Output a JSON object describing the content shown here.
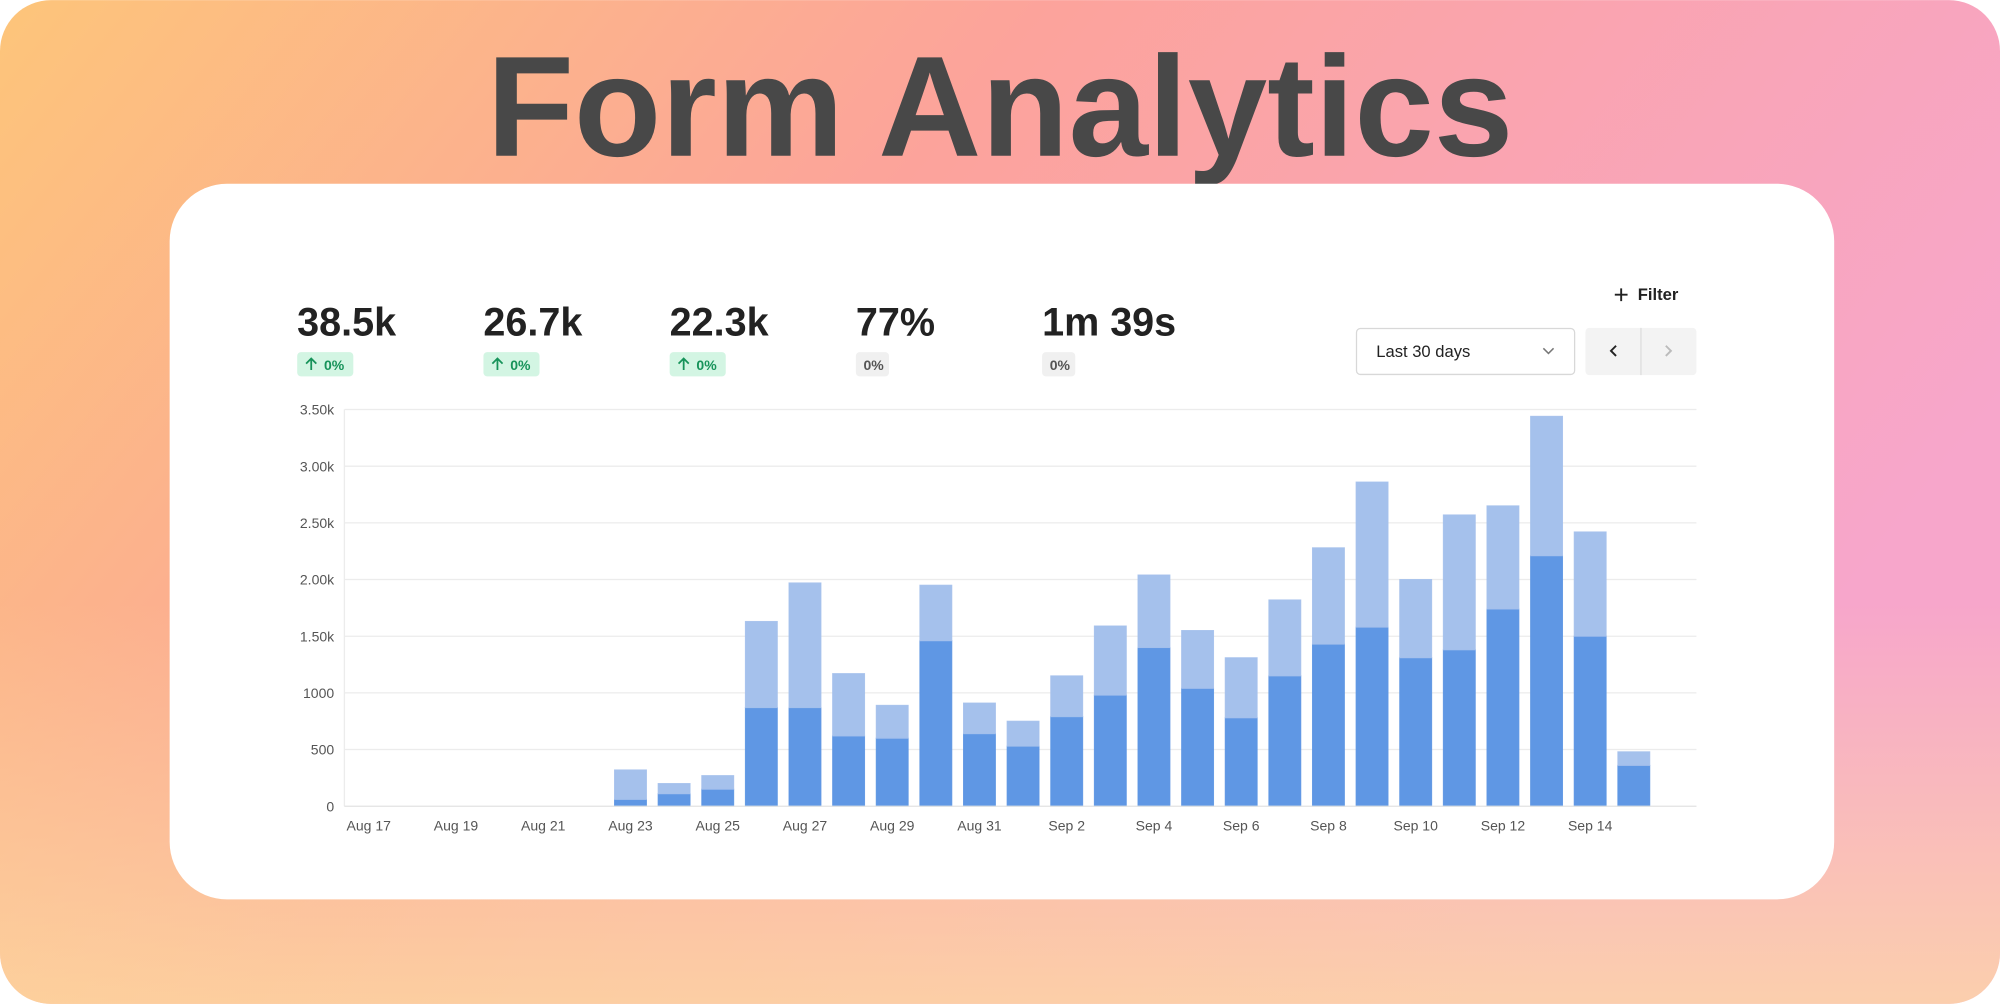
{
  "header": {
    "title": "Form Analytics"
  },
  "stats": [
    {
      "value": "38.5k",
      "change": "0%",
      "up": true
    },
    {
      "value": "26.7k",
      "change": "0%",
      "up": true
    },
    {
      "value": "22.3k",
      "change": "0%",
      "up": true
    },
    {
      "value": "77%",
      "change": "0%",
      "up": false
    },
    {
      "value": "1m 39s",
      "change": "0%",
      "up": false
    }
  ],
  "controls": {
    "filter": "Filter",
    "range": "Last 30 days"
  },
  "chart_data": {
    "type": "stacked_bar",
    "categories": [
      "Aug 17",
      null,
      "Aug 19",
      null,
      "Aug 21",
      null,
      "Aug 23",
      null,
      "Aug 25",
      null,
      "Aug 27",
      null,
      "Aug 29",
      null,
      "Aug 31",
      null,
      "Sep 2",
      null,
      "Sep 4",
      null,
      "Sep 6",
      null,
      "Sep 8",
      null,
      "Sep 10",
      null,
      "Sep 12",
      null,
      "Sep 14",
      null
    ],
    "series": [
      {
        "color": "#649ff0",
        "values": [
          0,
          0,
          0,
          0,
          0,
          0,
          60,
          110,
          150,
          870,
          870,
          620,
          600,
          1460,
          640,
          530,
          790,
          980,
          1400,
          1040,
          780,
          1150,
          1430,
          1580,
          1310,
          1380,
          1740,
          2210,
          1500,
          360
        ]
      },
      {
        "color": "#aecbf8",
        "values": [
          0,
          0,
          0,
          0,
          0,
          0,
          260,
          90,
          120,
          760,
          1100,
          550,
          290,
          490,
          270,
          220,
          360,
          610,
          640,
          510,
          530,
          670,
          850,
          1280,
          690,
          1190,
          910,
          1230,
          920,
          120
        ]
      }
    ],
    "ylim": [
      0,
      3500
    ],
    "yticks": [
      0,
      500,
      1000,
      {
        "value": 1500,
        "label": "1.50k"
      },
      {
        "value": 2000,
        "label": "2.00k"
      },
      {
        "value": 2500,
        "label": "2.50k"
      },
      {
        "value": 3000,
        "label": "3.00k"
      },
      {
        "value": 3500,
        "label": "3.50k"
      }
    ],
    "grid": true
  }
}
